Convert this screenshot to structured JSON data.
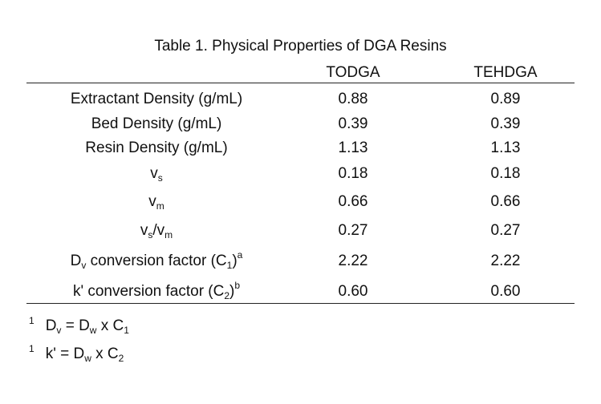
{
  "table": {
    "caption": "Table 1. Physical Properties of DGA Resins",
    "columns": [
      "TODGA",
      "TEHDGA"
    ],
    "rows": [
      {
        "label": "Extractant Density (g/mL)",
        "values": [
          "0.88",
          "0.89"
        ]
      },
      {
        "label": "Bed Density (g/mL)",
        "values": [
          "0.39",
          "0.39"
        ]
      },
      {
        "label": "Resin Density (g/mL)",
        "values": [
          "1.13",
          "1.13"
        ]
      },
      {
        "label_main": "v",
        "label_sub": "s",
        "values": [
          "0.18",
          "0.18"
        ]
      },
      {
        "label_main": "v",
        "label_sub": "m",
        "values": [
          "0.66",
          "0.66"
        ]
      },
      {
        "label_a": "v",
        "label_a_sub": "s",
        "label_b": "/v",
        "label_b_sub": "m",
        "values": [
          "0.27",
          "0.27"
        ]
      },
      {
        "label_pre": "D",
        "label_pre_sub": "v",
        "label_mid": " conversion factor (C",
        "label_mid_sub": "1",
        "label_post": ")",
        "label_sup": "a",
        "values": [
          "2.22",
          "2.22"
        ]
      },
      {
        "label_pre": "k' conversion factor (C",
        "label_pre_sub": "2",
        "label_post": ")",
        "label_sup": "b",
        "values": [
          "0.60",
          "0.60"
        ]
      }
    ]
  },
  "footnotes": [
    {
      "mark": "1",
      "p1": "D",
      "p1_sub": "v",
      "p2": " = D",
      "p2_sub": "w",
      "p3": " x C",
      "p3_sub": "1"
    },
    {
      "mark": "1",
      "p1": "k' = D",
      "p1_sub": "w",
      "p2": " x C",
      "p2_sub": "2"
    }
  ]
}
